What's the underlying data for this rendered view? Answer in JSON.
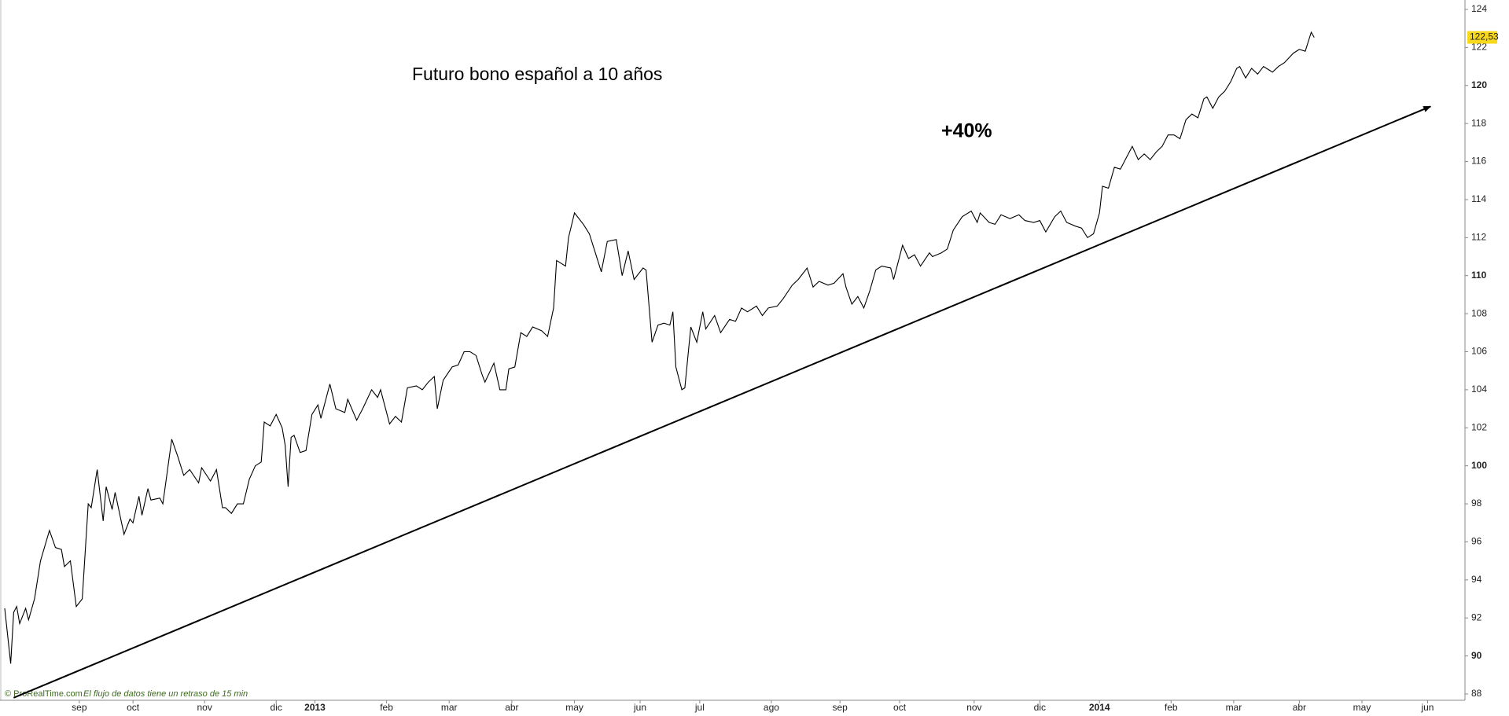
{
  "chart_data": {
    "type": "line",
    "title": "Futuro bono español a 10 años",
    "annotation": "+40%",
    "source": "© ProRealTime.com",
    "source_note": "El flujo de datos tiene un retraso de 15 min",
    "color": "#000000",
    "x": [
      0,
      2,
      3,
      4,
      5,
      7,
      8,
      10,
      12,
      15,
      17,
      19,
      20,
      22,
      24,
      26,
      27,
      28,
      29,
      31,
      33,
      34,
      36,
      37,
      40,
      42,
      43,
      45,
      46,
      48,
      49,
      52,
      53,
      56,
      58,
      60,
      62,
      65,
      66,
      69,
      71,
      73,
      74,
      76,
      78,
      80,
      82,
      84,
      86,
      87,
      89,
      91,
      93,
      94,
      95,
      96,
      97,
      99,
      101,
      103,
      105,
      106,
      109,
      111,
      114,
      115,
      118,
      120,
      123,
      125,
      126,
      129,
      131,
      133,
      135,
      138,
      140,
      142,
      144,
      145,
      147,
      150,
      152,
      154,
      156,
      158,
      160,
      161,
      164,
      166,
      168,
      169,
      171,
      173,
      175,
      177,
      180,
      182,
      184,
      185,
      188,
      189,
      191,
      194,
      196,
      198,
      200,
      202,
      205,
      207,
      209,
      211,
      214,
      215,
      217,
      219,
      221,
      223,
      224,
      225,
      227,
      228,
      230,
      232,
      234,
      235,
      238,
      240,
      243,
      245,
      247,
      249,
      252,
      254,
      256,
      259,
      261,
      264,
      266,
      269,
      271,
      273,
      276,
      278,
      281,
      282,
      284,
      286,
      288,
      290,
      292,
      294,
      297,
      298,
      301,
      303,
      305,
      307,
      310,
      311,
      314,
      316,
      318,
      321,
      324,
      326,
      327,
      330,
      332,
      334,
      337,
      340,
      342,
      345,
      347,
      349,
      352,
      354,
      356,
      359,
      361,
      363,
      365,
      367,
      368,
      370,
      372,
      374,
      376,
      378,
      380,
      382,
      384,
      386,
      388,
      390,
      392,
      394,
      396,
      398,
      400,
      402,
      403,
      405,
      407,
      409,
      411,
      413,
      414,
      416,
      418,
      420,
      422,
      424,
      425,
      427,
      429,
      432,
      434,
      436,
      438,
      439
    ],
    "values": [
      92.5,
      89.6,
      92.3,
      92.6,
      91.7,
      92.5,
      91.9,
      93,
      95,
      96.6,
      95.7,
      95.6,
      94.7,
      95,
      92.6,
      93,
      95.5,
      98,
      97.8,
      99.8,
      97.1,
      98.9,
      97.7,
      98.6,
      96.4,
      97.2,
      97,
      98.4,
      97.4,
      98.8,
      98.2,
      98.3,
      98,
      101.4,
      100.5,
      99.5,
      99.8,
      99.1,
      99.9,
      99.2,
      99.8,
      97.8,
      97.8,
      97.5,
      98,
      98,
      99.3,
      100,
      100.2,
      102.3,
      102.1,
      102.7,
      102,
      101.1,
      98.9,
      101.5,
      101.6,
      100.7,
      100.8,
      102.7,
      103.2,
      102.5,
      104.3,
      103,
      102.8,
      103.5,
      102.4,
      103,
      104,
      103.6,
      104,
      102.2,
      102.6,
      102.3,
      104.1,
      104.2,
      104,
      104.4,
      104.7,
      103,
      104.5,
      105.2,
      105.3,
      106,
      106,
      105.8,
      104.8,
      104.4,
      105.4,
      104,
      104,
      105.1,
      105.2,
      107,
      106.8,
      107.3,
      107.1,
      106.8,
      108.3,
      110.8,
      110.5,
      112,
      113.3,
      112.7,
      112.2,
      111.2,
      110.2,
      111.8,
      111.9,
      110,
      111.3,
      109.8,
      110.4,
      110.3,
      106.5,
      107.4,
      107.5,
      107.4,
      108.1,
      105.2,
      104,
      104.1,
      107.3,
      106.5,
      108.1,
      107.2,
      107.9,
      107,
      107.7,
      107.6,
      108.3,
      108.1,
      108.4,
      107.9,
      108.3,
      108.4,
      108.8,
      109.5,
      109.8,
      110.4,
      109.4,
      109.7,
      109.5,
      109.6,
      110.1,
      109.4,
      108.5,
      108.9,
      108.3,
      109.2,
      110.3,
      110.5,
      110.4,
      109.8,
      111.6,
      110.9,
      111.1,
      110.5,
      111.2,
      111,
      111.2,
      111.4,
      112.4,
      113.1,
      113.4,
      112.8,
      113.3,
      112.8,
      112.7,
      113.2,
      113,
      113.2,
      112.9,
      112.8,
      112.9,
      112.3,
      113.1,
      113.4,
      112.8,
      112.6,
      112.5,
      112,
      112.2,
      113.3,
      114.7,
      114.6,
      115.7,
      115.6,
      116.2,
      116.8,
      116.1,
      116.4,
      116.1,
      116.5,
      116.8,
      117.4,
      117.4,
      117.2,
      118.2,
      118.5,
      118.3,
      119.3,
      119.4,
      118.8,
      119.4,
      119.7,
      120.2,
      120.9,
      121,
      120.4,
      120.9,
      120.6,
      121,
      120.8,
      120.7,
      121,
      121.2,
      121.7,
      121.9,
      121.8,
      122.8,
      122.53
    ],
    "last_price": {
      "value": 122.53,
      "label": "122,53"
    },
    "trend_arrow": {
      "x": [
        3,
        478
      ],
      "values": [
        87.8,
        118.9
      ]
    },
    "xlim": [
      0,
      489
    ],
    "xticks": [
      {
        "value": 25,
        "label": "sep"
      },
      {
        "value": 43,
        "label": "oct"
      },
      {
        "value": 67,
        "label": "nov"
      },
      {
        "value": 91,
        "label": "dic"
      },
      {
        "value": 104,
        "label": "2013"
      },
      {
        "value": 128,
        "label": "feb"
      },
      {
        "value": 149,
        "label": "mar"
      },
      {
        "value": 170,
        "label": "abr"
      },
      {
        "value": 191,
        "label": "may"
      },
      {
        "value": 213,
        "label": "jun"
      },
      {
        "value": 233,
        "label": "jul"
      },
      {
        "value": 257,
        "label": "ago"
      },
      {
        "value": 280,
        "label": "sep"
      },
      {
        "value": 300,
        "label": "oct"
      },
      {
        "value": 325,
        "label": "nov"
      },
      {
        "value": 347,
        "label": "dic"
      },
      {
        "value": 367,
        "label": "2014"
      },
      {
        "value": 391,
        "label": "feb"
      },
      {
        "value": 412,
        "label": "mar"
      },
      {
        "value": 434,
        "label": "abr"
      },
      {
        "value": 455,
        "label": "may"
      },
      {
        "value": 477,
        "label": "jun"
      }
    ],
    "ylim": [
      88,
      124
    ],
    "yticks": [
      88,
      90,
      92,
      94,
      96,
      98,
      100,
      102,
      104,
      106,
      108,
      110,
      112,
      114,
      116,
      118,
      120,
      122,
      124
    ],
    "grid": false
  }
}
